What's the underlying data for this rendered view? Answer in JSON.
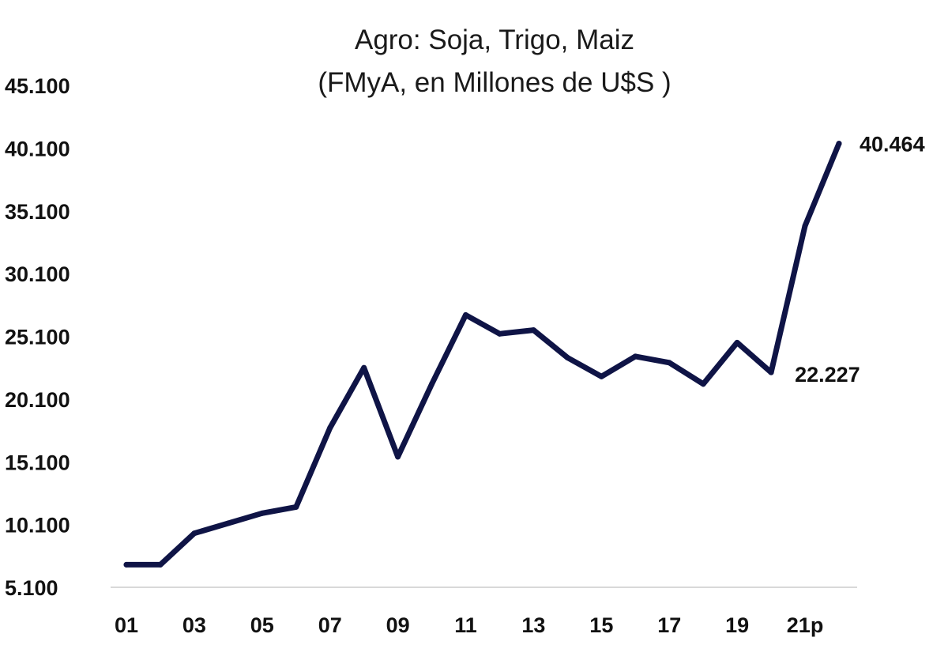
{
  "chart_data": {
    "type": "line",
    "title": "Agro: Soja, Trigo, Maiz",
    "subtitle": "(FMyA, en Millones de U$S )",
    "xlabel": "",
    "ylabel": "",
    "ylim": [
      5100,
      45100
    ],
    "y_ticks": [
      "5.100",
      "10.100",
      "15.100",
      "20.100",
      "25.100",
      "30.100",
      "35.100",
      "40.100",
      "45.100"
    ],
    "y_tick_values": [
      5100,
      10100,
      15100,
      20100,
      25100,
      30100,
      35100,
      40100,
      45100
    ],
    "x_tick_labels": [
      "01",
      "03",
      "05",
      "07",
      "09",
      "11",
      "13",
      "15",
      "17",
      "19",
      "21p"
    ],
    "grid": false,
    "legend": "none",
    "line_color": "#0f1446",
    "x": [
      2001,
      2002,
      2003,
      2004,
      2005,
      2006,
      2007,
      2008,
      2009,
      2010,
      2011,
      2012,
      2013,
      2014,
      2015,
      2016,
      2017,
      2018,
      2019,
      2020,
      2021,
      2022
    ],
    "series": [
      {
        "values": [
          6900,
          6900,
          9400,
          10200,
          11000,
          11500,
          17800,
          22600,
          15500,
          21300,
          26800,
          25300,
          25600,
          23400,
          21900,
          23500,
          23000,
          21300,
          24600,
          22227,
          33900,
          40464
        ]
      }
    ],
    "annotations": [
      {
        "x": 2020,
        "text": "22.227"
      },
      {
        "x": 2022,
        "text": "40.464"
      }
    ]
  }
}
